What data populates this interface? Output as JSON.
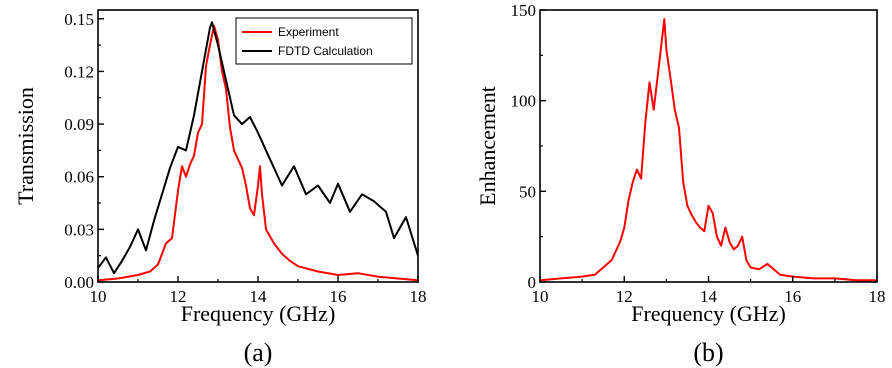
{
  "chart_data": [
    {
      "type": "line",
      "panel_label": "(a)",
      "xlabel": "Frequency (GHz)",
      "ylabel": "Transmission",
      "xlim": [
        10,
        18
      ],
      "ylim": [
        0,
        0.155
      ],
      "xticks": [
        10,
        12,
        14,
        16,
        18
      ],
      "xtick_labels": [
        "10",
        "12",
        "14",
        "16",
        "18"
      ],
      "yticks": [
        0,
        0.03,
        0.06,
        0.09,
        0.12,
        0.15
      ],
      "ytick_labels": [
        "0.00",
        "0.03",
        "0.06",
        "0.09",
        "0.12",
        "0.15"
      ],
      "grid": false,
      "legend": "top-right",
      "series": [
        {
          "name": "Experiment",
          "color": "#ff0000",
          "x": [
            10.0,
            10.5,
            11.0,
            11.3,
            11.5,
            11.7,
            11.85,
            12.0,
            12.1,
            12.2,
            12.3,
            12.4,
            12.5,
            12.6,
            12.7,
            12.8,
            12.9,
            13.0,
            13.1,
            13.2,
            13.3,
            13.4,
            13.5,
            13.6,
            13.7,
            13.8,
            13.9,
            14.0,
            14.05,
            14.1,
            14.2,
            14.4,
            14.6,
            14.8,
            15.0,
            15.5,
            16.0,
            16.5,
            17.0,
            17.5,
            18.0
          ],
          "y": [
            0.001,
            0.002,
            0.004,
            0.006,
            0.01,
            0.022,
            0.025,
            0.052,
            0.066,
            0.06,
            0.067,
            0.072,
            0.085,
            0.09,
            0.123,
            0.135,
            0.146,
            0.138,
            0.12,
            0.11,
            0.088,
            0.075,
            0.07,
            0.065,
            0.055,
            0.042,
            0.038,
            0.055,
            0.066,
            0.05,
            0.03,
            0.022,
            0.016,
            0.012,
            0.009,
            0.006,
            0.004,
            0.005,
            0.003,
            0.002,
            0.001
          ]
        },
        {
          "name": "FDTD Calculation",
          "color": "#000000",
          "x": [
            10.0,
            10.2,
            10.4,
            10.6,
            10.8,
            11.0,
            11.2,
            11.4,
            11.6,
            11.8,
            12.0,
            12.2,
            12.4,
            12.6,
            12.8,
            12.85,
            13.0,
            13.2,
            13.4,
            13.6,
            13.8,
            14.0,
            14.3,
            14.6,
            14.9,
            15.2,
            15.5,
            15.8,
            16.0,
            16.3,
            16.6,
            16.9,
            17.2,
            17.4,
            17.7,
            18.0
          ],
          "y": [
            0.008,
            0.014,
            0.005,
            0.012,
            0.02,
            0.03,
            0.018,
            0.035,
            0.05,
            0.065,
            0.077,
            0.075,
            0.095,
            0.12,
            0.145,
            0.148,
            0.135,
            0.115,
            0.095,
            0.09,
            0.094,
            0.085,
            0.07,
            0.055,
            0.066,
            0.05,
            0.055,
            0.045,
            0.056,
            0.04,
            0.05,
            0.046,
            0.04,
            0.025,
            0.037,
            0.015
          ]
        }
      ]
    },
    {
      "type": "line",
      "panel_label": "(b)",
      "xlabel": "Frequency (GHz)",
      "ylabel": "Enhancement",
      "xlim": [
        10,
        18
      ],
      "ylim": [
        0,
        150
      ],
      "xticks": [
        10,
        12,
        14,
        16,
        18
      ],
      "xtick_labels": [
        "10",
        "12",
        "14",
        "16",
        "18"
      ],
      "yticks": [
        0,
        50,
        100,
        150
      ],
      "ytick_labels": [
        "0",
        "50",
        "100",
        "150"
      ],
      "grid": false,
      "series": [
        {
          "color": "#ff0000",
          "x": [
            10.0,
            10.5,
            11.0,
            11.3,
            11.5,
            11.7,
            11.9,
            12.0,
            12.1,
            12.2,
            12.3,
            12.4,
            12.5,
            12.6,
            12.7,
            12.8,
            12.9,
            12.95,
            13.0,
            13.1,
            13.2,
            13.3,
            13.4,
            13.5,
            13.6,
            13.7,
            13.8,
            13.9,
            14.0,
            14.1,
            14.2,
            14.3,
            14.4,
            14.5,
            14.6,
            14.7,
            14.8,
            14.9,
            15.0,
            15.2,
            15.4,
            15.5,
            15.7,
            16.0,
            16.5,
            17.0,
            17.5,
            18.0
          ],
          "y": [
            1,
            2,
            3,
            4,
            8,
            12,
            22,
            30,
            45,
            55,
            62,
            57,
            88,
            110,
            95,
            115,
            135,
            145,
            128,
            112,
            95,
            85,
            55,
            42,
            37,
            33,
            30,
            28,
            42,
            38,
            25,
            20,
            30,
            22,
            18,
            20,
            25,
            12,
            8,
            7,
            10,
            8,
            4,
            3,
            2,
            2,
            1,
            1
          ]
        }
      ]
    }
  ]
}
